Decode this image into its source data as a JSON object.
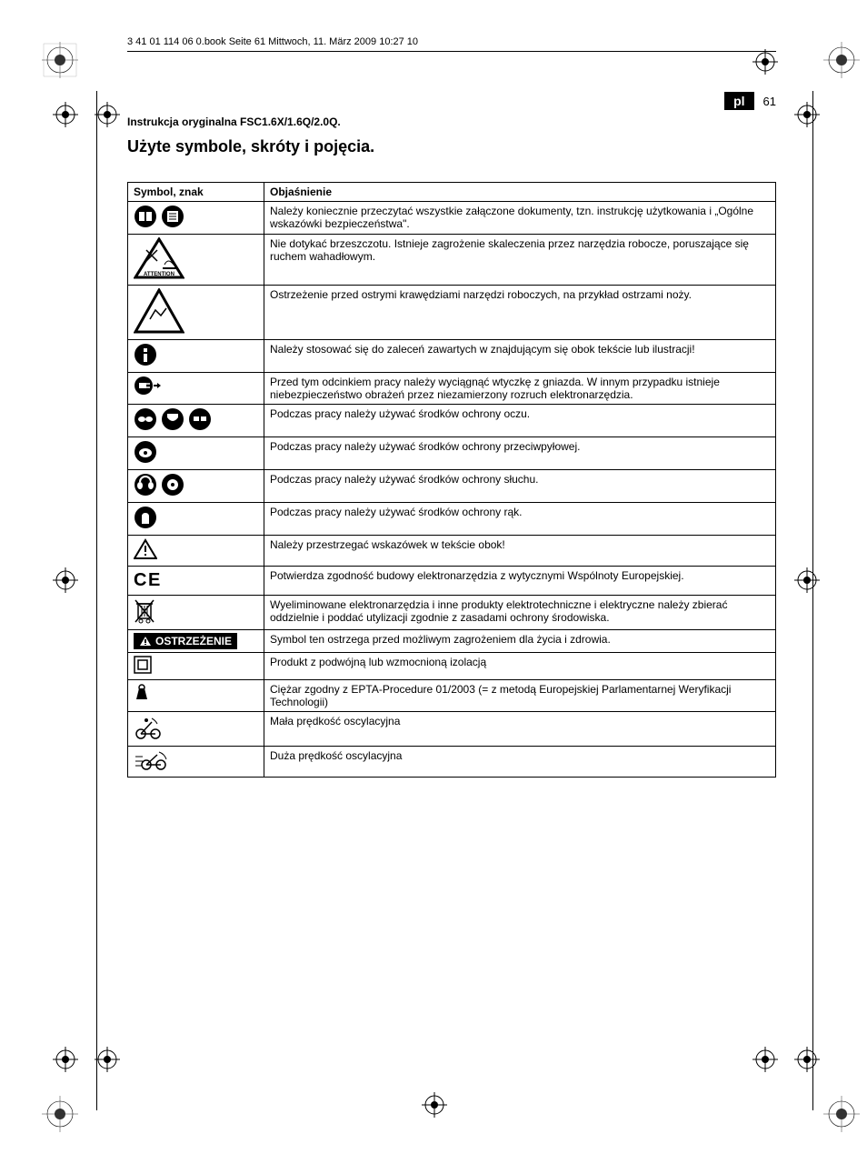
{
  "header_line": "3 41 01 114 06 0.book  Seite 61  Mittwoch, 11. März 2009  10:27 10",
  "lang_code": "pl",
  "page_number": "61",
  "subtitle": "Instrukcja oryginalna FSC1.6X/1.6Q/2.0Q.",
  "title": "Użyte symbole, skróty i pojęcia.",
  "table": {
    "headers": [
      "Symbol, znak",
      "Objaśnienie"
    ],
    "rows": [
      {
        "icon": "read-docs",
        "text": "Należy koniecznie przeczytać wszystkie załączone dokumenty, tzn. instrukcję użytkowania i „Ogólne wskazówki bezpieczeństwa\"."
      },
      {
        "icon": "no-touch-blade",
        "text": "Nie dotykać brzeszczotu. Istnieje zagrożenie skaleczenia przez narzędzia robocze, poruszające się ruchem wahadłowym."
      },
      {
        "icon": "sharp-edge-warning",
        "text": "Ostrzeżenie przed ostrymi krawędziami narzędzi roboczych, na przykład ostrzami noży."
      },
      {
        "icon": "general-instruction",
        "text": "Należy stosować się do zaleceń zawartych w znajdującym się obok tekście lub ilustracji!"
      },
      {
        "icon": "unplug",
        "text": "Przed tym odcinkiem pracy należy wyciągnąć wtyczkę z gniazda. W innym przypadku istnieje niebezpieczeństwo obrażeń przez niezamierzony rozruch elektronarzędzia."
      },
      {
        "icon": "eye-protection",
        "text": "Podczas pracy należy używać środków ochrony oczu."
      },
      {
        "icon": "dust-protection",
        "text": "Podczas pracy należy używać środków ochrony przeciwpyłowej."
      },
      {
        "icon": "ear-protection",
        "text": "Podczas pracy należy używać środków ochrony słuchu."
      },
      {
        "icon": "hand-protection",
        "text": "Podczas pracy należy używać środków ochrony rąk."
      },
      {
        "icon": "caution-triangle",
        "text": "Należy przestrzegać wskazówek w tekście obok!"
      },
      {
        "icon": "ce-mark",
        "text": "Potwierdza zgodność budowy elektronarzędzia z wytycznymi Wspólnoty Europejskiej."
      },
      {
        "icon": "weee",
        "text": "Wyeliminowane elektronarzędzia i inne produkty elektrotechniczne i elektryczne należy zbierać oddzielnie i poddać utylizacji zgodnie z zasadami ochrony środowiska."
      },
      {
        "icon": "warning-banner",
        "text": "Symbol ten ostrzega przed możliwym zagrożeniem dla życia i zdrowia.",
        "label": "OSTRZEŻENIE"
      },
      {
        "icon": "double-insulation",
        "text": "Produkt z podwójną lub wzmocnioną izolacją"
      },
      {
        "icon": "weight",
        "text": "Ciężar zgodny z EPTA-Procedure 01/2003 (= z metodą Europejskiej Parlamentarnej Weryfikacji Technologii)"
      },
      {
        "icon": "low-speed",
        "text": "Mała prędkość oscylacyjna"
      },
      {
        "icon": "high-speed",
        "text": "Duża prędkość oscylacyjna"
      }
    ]
  },
  "colors": {
    "background": "#ffffff",
    "text": "#000000",
    "border": "#000000"
  },
  "typography": {
    "body_fontsize": 12,
    "title_fontsize": 18,
    "subtitle_fontsize": 12,
    "header_fontsize": 11
  }
}
